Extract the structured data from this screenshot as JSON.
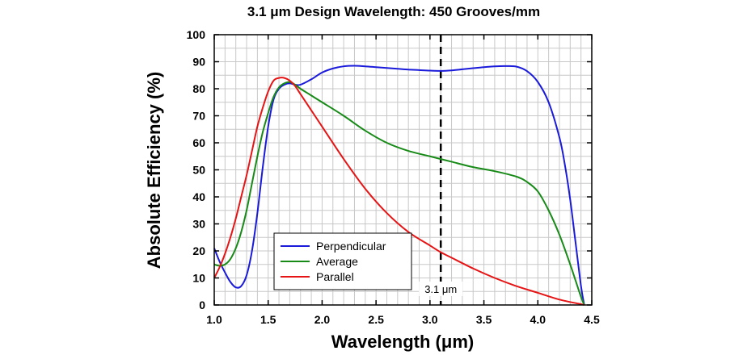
{
  "chart_data": {
    "type": "line",
    "title": "3.1 μm Design Wavelength: 450 Grooves/mm",
    "xlabel": "Wavelength (μm)",
    "ylabel": "Absolute Efficiency (%)",
    "xlim": [
      1.0,
      4.5
    ],
    "ylim": [
      0,
      100
    ],
    "xticks": [
      "1.0",
      "1.5",
      "2.0",
      "2.5",
      "3.0",
      "3.5",
      "4.0",
      "4.5"
    ],
    "yticks": [
      "0",
      "10",
      "20",
      "30",
      "40",
      "50",
      "60",
      "70",
      "80",
      "90",
      "100"
    ],
    "grid": true,
    "legend_position": "bottom-left",
    "series": [
      {
        "name": "Perpendicular",
        "color": "#1a1adb",
        "x": [
          1.0,
          1.05,
          1.1,
          1.15,
          1.2,
          1.25,
          1.3,
          1.35,
          1.4,
          1.45,
          1.5,
          1.55,
          1.6,
          1.65,
          1.7,
          1.75,
          1.8,
          1.9,
          2.0,
          2.1,
          2.2,
          2.3,
          2.4,
          2.5,
          2.6,
          2.7,
          2.8,
          2.9,
          3.0,
          3.1,
          3.2,
          3.3,
          3.4,
          3.5,
          3.6,
          3.7,
          3.8,
          3.9,
          4.0,
          4.1,
          4.2,
          4.25,
          4.3,
          4.35,
          4.4,
          4.43
        ],
        "y": [
          21,
          16,
          12,
          8.5,
          6.5,
          7,
          11,
          20,
          34,
          51,
          66,
          76,
          80,
          81.5,
          82,
          81.5,
          81.5,
          83.5,
          86,
          87.5,
          88.3,
          88.5,
          88.3,
          88,
          87.7,
          87.4,
          87.1,
          86.9,
          86.7,
          86.6,
          86.8,
          87.2,
          87.6,
          88,
          88.3,
          88.4,
          88.2,
          86.5,
          82.5,
          75,
          62,
          52,
          39,
          23,
          7,
          0
        ]
      },
      {
        "name": "Average",
        "color": "#178a17",
        "x": [
          1.0,
          1.05,
          1.1,
          1.15,
          1.2,
          1.25,
          1.3,
          1.35,
          1.4,
          1.45,
          1.5,
          1.55,
          1.6,
          1.65,
          1.7,
          1.75,
          1.8,
          1.9,
          2.0,
          2.2,
          2.4,
          2.6,
          2.8,
          3.0,
          3.1,
          3.2,
          3.4,
          3.6,
          3.8,
          3.9,
          4.0,
          4.1,
          4.2,
          4.3,
          4.35,
          4.4,
          4.43
        ],
        "y": [
          15,
          14.5,
          15,
          17,
          21,
          27,
          35,
          45,
          55,
          64,
          71,
          77,
          80.5,
          82,
          82.5,
          81.5,
          80,
          77.5,
          75,
          70,
          64.5,
          60,
          57,
          55,
          54,
          53,
          51,
          49.5,
          47.5,
          45.5,
          42,
          35,
          26,
          15,
          9,
          3,
          0
        ]
      },
      {
        "name": "Parallel",
        "color": "#e61414",
        "x": [
          1.0,
          1.05,
          1.1,
          1.15,
          1.2,
          1.25,
          1.3,
          1.35,
          1.4,
          1.45,
          1.5,
          1.55,
          1.6,
          1.65,
          1.7,
          1.75,
          1.8,
          1.9,
          2.0,
          2.2,
          2.4,
          2.6,
          2.8,
          3.0,
          3.1,
          3.2,
          3.4,
          3.6,
          3.8,
          4.0,
          4.2,
          4.4,
          4.43
        ],
        "y": [
          10,
          14,
          19,
          25,
          32,
          40,
          48,
          57,
          66,
          73,
          79,
          83,
          84,
          84,
          83,
          81,
          78,
          72,
          66,
          54,
          43,
          34,
          27,
          22,
          19.5,
          17.5,
          13.5,
          10,
          7,
          4.5,
          2,
          0.3,
          0
        ]
      }
    ],
    "annotations": [
      {
        "type": "vline",
        "x": 3.1,
        "style": "dashed",
        "label": "3.1 μm"
      }
    ]
  }
}
